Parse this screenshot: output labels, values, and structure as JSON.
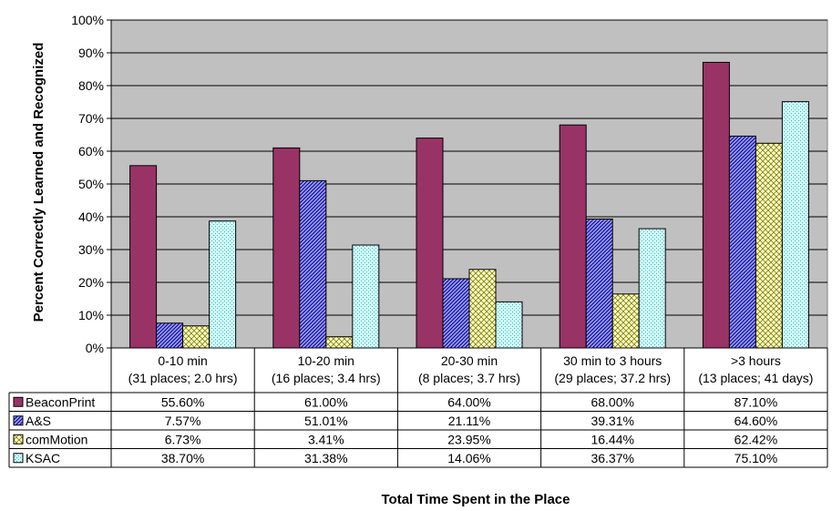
{
  "chart_data": {
    "type": "bar",
    "title": "",
    "ylabel": "Percent Correctly Learned and Recognized",
    "xlabel": "Total Time Spent in the Place",
    "ylim": [
      0,
      100
    ],
    "y_ticks": [
      "0%",
      "10%",
      "20%",
      "30%",
      "40%",
      "50%",
      "60%",
      "70%",
      "80%",
      "90%",
      "100%"
    ],
    "grid": true,
    "plot_background": "#c0c0c0",
    "categories": [
      {
        "line1": "0-10 min",
        "line2": "(31 places; 2.0 hrs)"
      },
      {
        "line1": "10-20 min",
        "line2": "(16 places; 3.4 hrs)"
      },
      {
        "line1": "20-30 min",
        "line2": "(8 places; 3.7 hrs)"
      },
      {
        "line1": "30 min to 3 hours",
        "line2": "(29 places; 37.2 hrs)"
      },
      {
        "line1": ">3 hours",
        "line2": "(13 places; 41 days)"
      }
    ],
    "series": [
      {
        "name": "BeaconPrint",
        "color": "#993366",
        "pattern": "solid",
        "values": [
          55.6,
          61.0,
          64.0,
          68.0,
          87.1
        ],
        "labels": [
          "55.60%",
          "61.00%",
          "64.00%",
          "68.00%",
          "87.10%"
        ]
      },
      {
        "name": "A&S",
        "color": "#9999ff",
        "pattern": "diagonal-hatch",
        "values": [
          7.57,
          51.01,
          21.11,
          39.31,
          64.6
        ],
        "labels": [
          "7.57%",
          "51.01%",
          "21.11%",
          "39.31%",
          "64.60%"
        ]
      },
      {
        "name": "comMotion",
        "color": "#ffffcc",
        "pattern": "cross-hatch",
        "values": [
          6.73,
          3.41,
          23.95,
          16.44,
          62.42
        ],
        "labels": [
          "6.73%",
          "3.41%",
          "23.95%",
          "16.44%",
          "62.42%"
        ]
      },
      {
        "name": "KSAC",
        "color": "#ccffff",
        "pattern": "dotted",
        "values": [
          38.7,
          31.38,
          14.06,
          36.37,
          75.1
        ],
        "labels": [
          "38.70%",
          "31.38%",
          "14.06%",
          "36.37%",
          "75.10%"
        ]
      }
    ]
  }
}
